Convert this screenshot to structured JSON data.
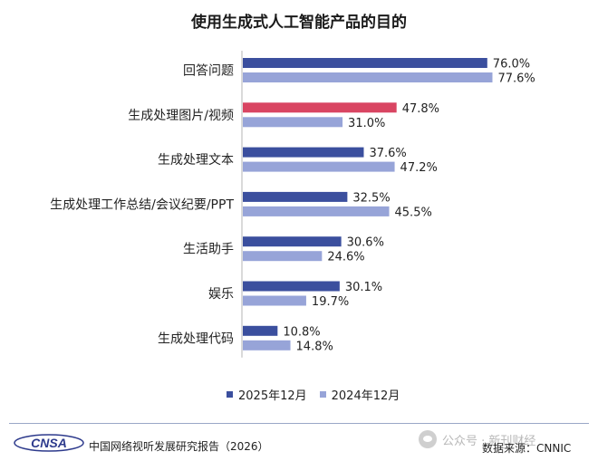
{
  "title": "使用生成式人工智能产品的目的",
  "colors": {
    "series_2025": "#3b4f9e",
    "series_2025_highlight": "#d94562",
    "series_2024": "#97a4d8",
    "cnsa_blue": "#2d3a8c"
  },
  "chart_data": {
    "type": "bar",
    "orientation": "horizontal",
    "categories": [
      "回答问题",
      "生成处理图片/视频",
      "生成处理文本",
      "生成处理工作总结/会议纪要/PPT",
      "生活助手",
      "娱乐",
      "生成处理代码"
    ],
    "series": [
      {
        "name": "2025年12月",
        "values": [
          76.0,
          47.8,
          37.6,
          32.5,
          30.6,
          30.1,
          10.8
        ],
        "labels": [
          "76.0%",
          "47.8%",
          "37.6%",
          "32.5%",
          "30.6%",
          "30.1%",
          "10.8%"
        ]
      },
      {
        "name": "2024年12月",
        "values": [
          77.6,
          31.0,
          47.2,
          45.5,
          24.6,
          19.7,
          14.8
        ],
        "labels": [
          "77.6%",
          "31.0%",
          "47.2%",
          "45.5%",
          "24.6%",
          "19.7%",
          "14.8%"
        ]
      }
    ],
    "highlight": {
      "series": 0,
      "category": 1
    },
    "unit": "%",
    "xlim": [
      0,
      100
    ],
    "legend_position": "bottom"
  },
  "footer": {
    "logo_text": "CNSA",
    "report": "中国网络视听发展研究报告（2026）",
    "watermark": "公众号 · 新刊财经",
    "source": "数据来源：CNNIC"
  }
}
